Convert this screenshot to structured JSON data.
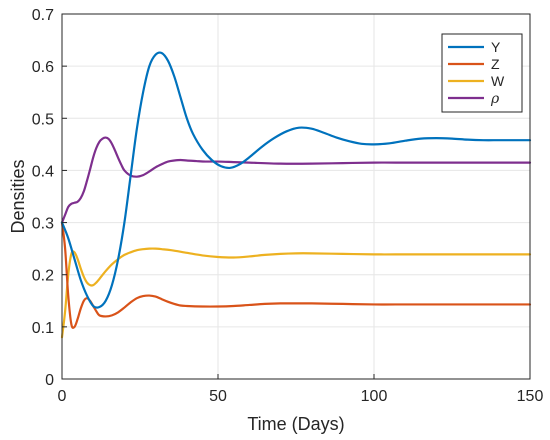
{
  "chart_data": {
    "type": "line",
    "xlabel": "Time (Days)",
    "ylabel": "Densities",
    "xlim": [
      0,
      150
    ],
    "ylim": [
      0,
      0.7
    ],
    "xticks": [
      0,
      50,
      100,
      150
    ],
    "yticks": [
      0,
      0.1,
      0.2,
      0.3,
      0.4,
      0.5,
      0.6,
      0.7
    ],
    "grid": true,
    "legend": "top-right",
    "series": [
      {
        "name": "Y",
        "color": "#0072BD",
        "x": [
          0,
          2,
          4,
          6,
          8,
          10,
          12,
          14,
          16,
          18,
          20,
          22,
          24,
          26,
          28,
          30,
          32,
          34,
          36,
          38,
          40,
          42,
          45,
          48,
          51,
          54,
          57,
          60,
          64,
          68,
          72,
          76,
          80,
          84,
          88,
          92,
          96,
          100,
          105,
          110,
          115,
          120,
          125,
          130,
          135,
          140,
          145,
          150
        ],
        "values": [
          0.3,
          0.27,
          0.23,
          0.19,
          0.16,
          0.14,
          0.138,
          0.15,
          0.18,
          0.23,
          0.3,
          0.39,
          0.48,
          0.55,
          0.6,
          0.622,
          0.625,
          0.61,
          0.58,
          0.54,
          0.5,
          0.47,
          0.44,
          0.42,
          0.408,
          0.405,
          0.412,
          0.425,
          0.445,
          0.462,
          0.475,
          0.482,
          0.48,
          0.472,
          0.463,
          0.456,
          0.451,
          0.45,
          0.452,
          0.457,
          0.461,
          0.462,
          0.461,
          0.459,
          0.458,
          0.458,
          0.458,
          0.458
        ]
      },
      {
        "name": "Z",
        "color": "#D95319",
        "x": [
          0,
          1,
          2,
          3,
          4,
          5,
          6,
          7,
          8,
          9,
          10,
          11,
          12,
          14,
          16,
          18,
          20,
          22,
          24,
          26,
          28,
          30,
          32,
          34,
          36,
          38,
          40,
          45,
          50,
          55,
          60,
          65,
          70,
          75,
          80,
          90,
          100,
          110,
          120,
          130,
          140,
          150
        ],
        "values": [
          0.3,
          0.25,
          0.16,
          0.105,
          0.1,
          0.115,
          0.135,
          0.15,
          0.155,
          0.15,
          0.14,
          0.13,
          0.122,
          0.12,
          0.122,
          0.128,
          0.137,
          0.147,
          0.155,
          0.159,
          0.16,
          0.158,
          0.153,
          0.148,
          0.144,
          0.141,
          0.14,
          0.139,
          0.139,
          0.14,
          0.142,
          0.144,
          0.145,
          0.145,
          0.145,
          0.144,
          0.143,
          0.143,
          0.143,
          0.143,
          0.143,
          0.143
        ]
      },
      {
        "name": "W",
        "color": "#EDB120",
        "x": [
          0,
          1,
          2,
          3,
          4,
          5,
          6,
          7,
          8,
          9,
          10,
          11,
          12,
          14,
          16,
          18,
          20,
          22,
          24,
          26,
          28,
          30,
          32,
          35,
          40,
          45,
          50,
          55,
          60,
          65,
          70,
          75,
          80,
          90,
          100,
          110,
          120,
          130,
          140,
          150
        ],
        "values": [
          0.08,
          0.13,
          0.2,
          0.24,
          0.243,
          0.23,
          0.212,
          0.196,
          0.185,
          0.18,
          0.18,
          0.185,
          0.192,
          0.207,
          0.22,
          0.23,
          0.238,
          0.243,
          0.247,
          0.249,
          0.25,
          0.25,
          0.249,
          0.247,
          0.242,
          0.237,
          0.234,
          0.233,
          0.235,
          0.238,
          0.24,
          0.241,
          0.241,
          0.24,
          0.239,
          0.239,
          0.239,
          0.239,
          0.239,
          0.239
        ]
      },
      {
        "name": "ρ",
        "color": "#7E2F8E",
        "x": [
          0,
          1,
          2,
          3,
          4,
          5,
          6,
          7,
          8,
          9,
          10,
          11,
          12,
          13,
          14,
          15,
          16,
          17,
          18,
          19,
          20,
          22,
          24,
          26,
          28,
          30,
          32,
          34,
          36,
          38,
          40,
          43,
          46,
          50,
          55,
          60,
          70,
          80,
          90,
          100,
          110,
          120,
          130,
          140,
          150
        ],
        "values": [
          0.3,
          0.315,
          0.33,
          0.336,
          0.338,
          0.34,
          0.347,
          0.36,
          0.38,
          0.402,
          0.425,
          0.443,
          0.455,
          0.461,
          0.463,
          0.46,
          0.451,
          0.438,
          0.424,
          0.411,
          0.4,
          0.39,
          0.388,
          0.391,
          0.398,
          0.406,
          0.412,
          0.417,
          0.419,
          0.42,
          0.419,
          0.418,
          0.417,
          0.417,
          0.416,
          0.415,
          0.413,
          0.413,
          0.414,
          0.415,
          0.415,
          0.415,
          0.415,
          0.415,
          0.415
        ]
      }
    ]
  }
}
